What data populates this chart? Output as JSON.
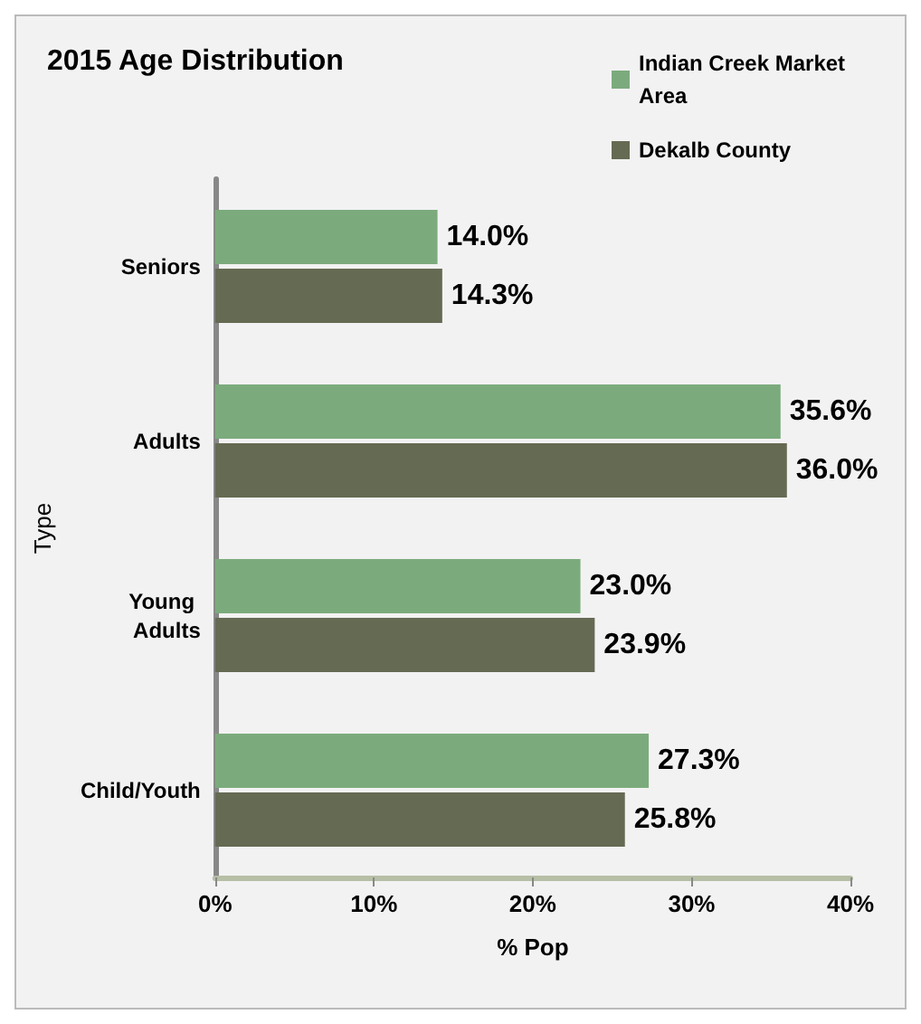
{
  "chart_data": {
    "type": "bar",
    "orientation": "horizontal",
    "title": "2015 Age Distribution",
    "xlabel": "% Pop",
    "ylabel": "Type",
    "categories": [
      "Seniors",
      "Adults",
      "Young Adults",
      "Child/Youth"
    ],
    "series": [
      {
        "name": "Indian Creek Market Area",
        "color": "#7bab7c",
        "values": [
          14.0,
          35.6,
          23.0,
          27.3
        ],
        "value_labels": [
          "14.0%",
          "35.6%",
          "23.0%",
          "27.3%"
        ]
      },
      {
        "name": "Dekalb County",
        "color": "#656a53",
        "values": [
          14.3,
          36.0,
          23.9,
          25.8
        ],
        "value_labels": [
          "14.3%",
          "36.0%",
          "23.9%",
          "25.8%"
        ]
      }
    ],
    "xlim": [
      0,
      40
    ],
    "xticks": [
      {
        "value": 0,
        "label": "0%"
      },
      {
        "value": 10,
        "label": "10%"
      },
      {
        "value": 20,
        "label": "20%"
      },
      {
        "value": 30,
        "label": "30%"
      },
      {
        "value": 40,
        "label": "40%"
      }
    ],
    "grid": false,
    "legend": "top right"
  }
}
